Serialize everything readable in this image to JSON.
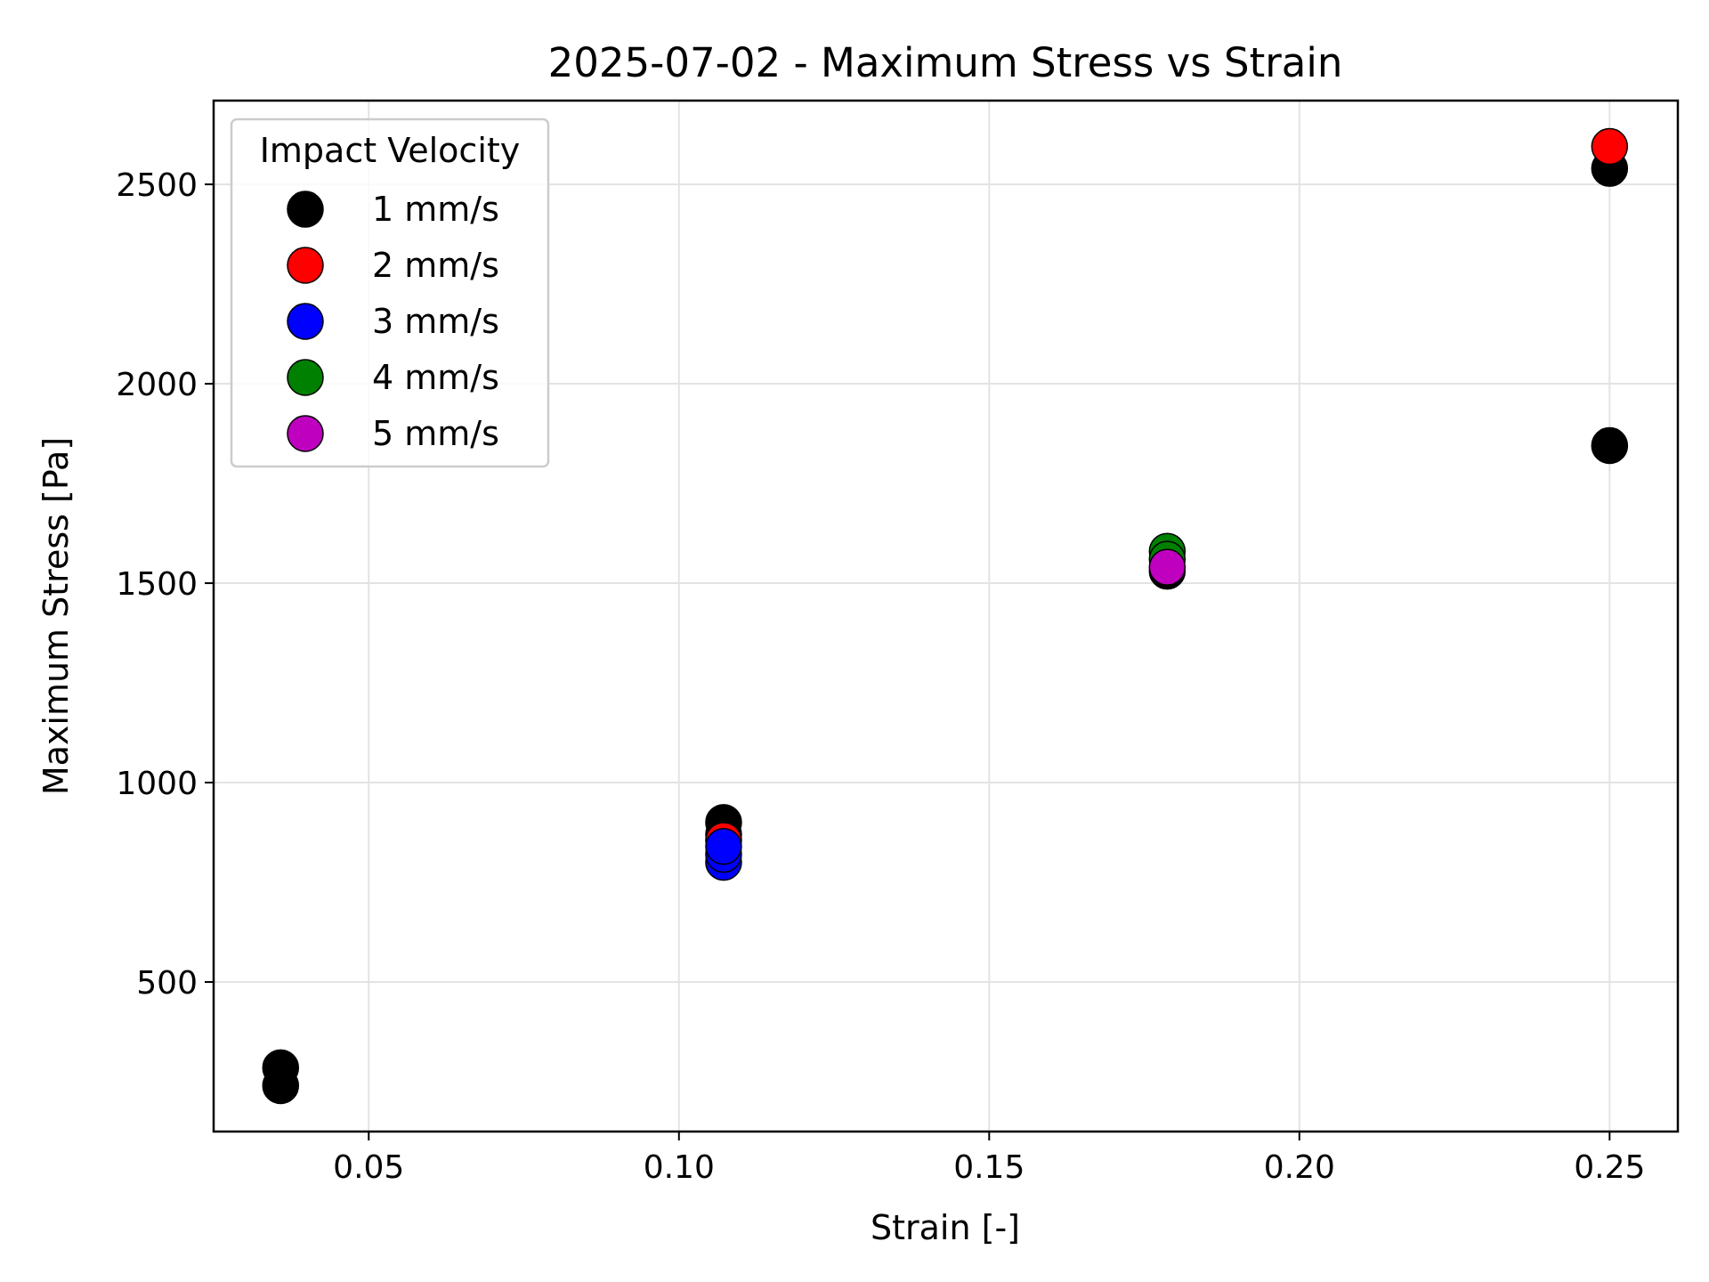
{
  "chart_data": {
    "type": "scatter",
    "title": "2025-07-02 - Maximum Stress vs Strain",
    "xlabel": "Strain [-]",
    "ylabel": "Maximum Stress [Pa]",
    "xlim": [
      0.025,
      0.261
    ],
    "ylim": [
      125,
      2710
    ],
    "xticks": [
      0.05,
      0.1,
      0.15,
      0.2,
      0.25
    ],
    "xtick_labels": [
      "0.05",
      "0.10",
      "0.15",
      "0.20",
      "0.25"
    ],
    "yticks": [
      500,
      1000,
      1500,
      2000,
      2500
    ],
    "ytick_labels": [
      "500",
      "1000",
      "1500",
      "2000",
      "2500"
    ],
    "grid": true,
    "legend": {
      "title": "Impact Velocity",
      "placement": "top-left"
    },
    "series": [
      {
        "name": "1 mm/s",
        "color": "#000000",
        "points": [
          {
            "x": 0.0358,
            "y": 240
          },
          {
            "x": 0.0358,
            "y": 285
          },
          {
            "x": 0.1072,
            "y": 900
          },
          {
            "x": 0.1072,
            "y": 870
          },
          {
            "x": 0.1787,
            "y": 1530
          },
          {
            "x": 0.25,
            "y": 1845
          },
          {
            "x": 0.25,
            "y": 2540
          }
        ]
      },
      {
        "name": "2 mm/s",
        "color": "#ff0000",
        "points": [
          {
            "x": 0.1072,
            "y": 855
          },
          {
            "x": 0.25,
            "y": 2595
          }
        ]
      },
      {
        "name": "3 mm/s",
        "color": "#0000ff",
        "points": [
          {
            "x": 0.1072,
            "y": 800
          },
          {
            "x": 0.1072,
            "y": 820
          },
          {
            "x": 0.1072,
            "y": 840
          }
        ]
      },
      {
        "name": "4 mm/s",
        "color": "#008000",
        "points": [
          {
            "x": 0.1787,
            "y": 1580
          },
          {
            "x": 0.1787,
            "y": 1560
          }
        ]
      },
      {
        "name": "5 mm/s",
        "color": "#bf00bf",
        "points": [
          {
            "x": 0.1787,
            "y": 1540
          }
        ]
      }
    ]
  }
}
